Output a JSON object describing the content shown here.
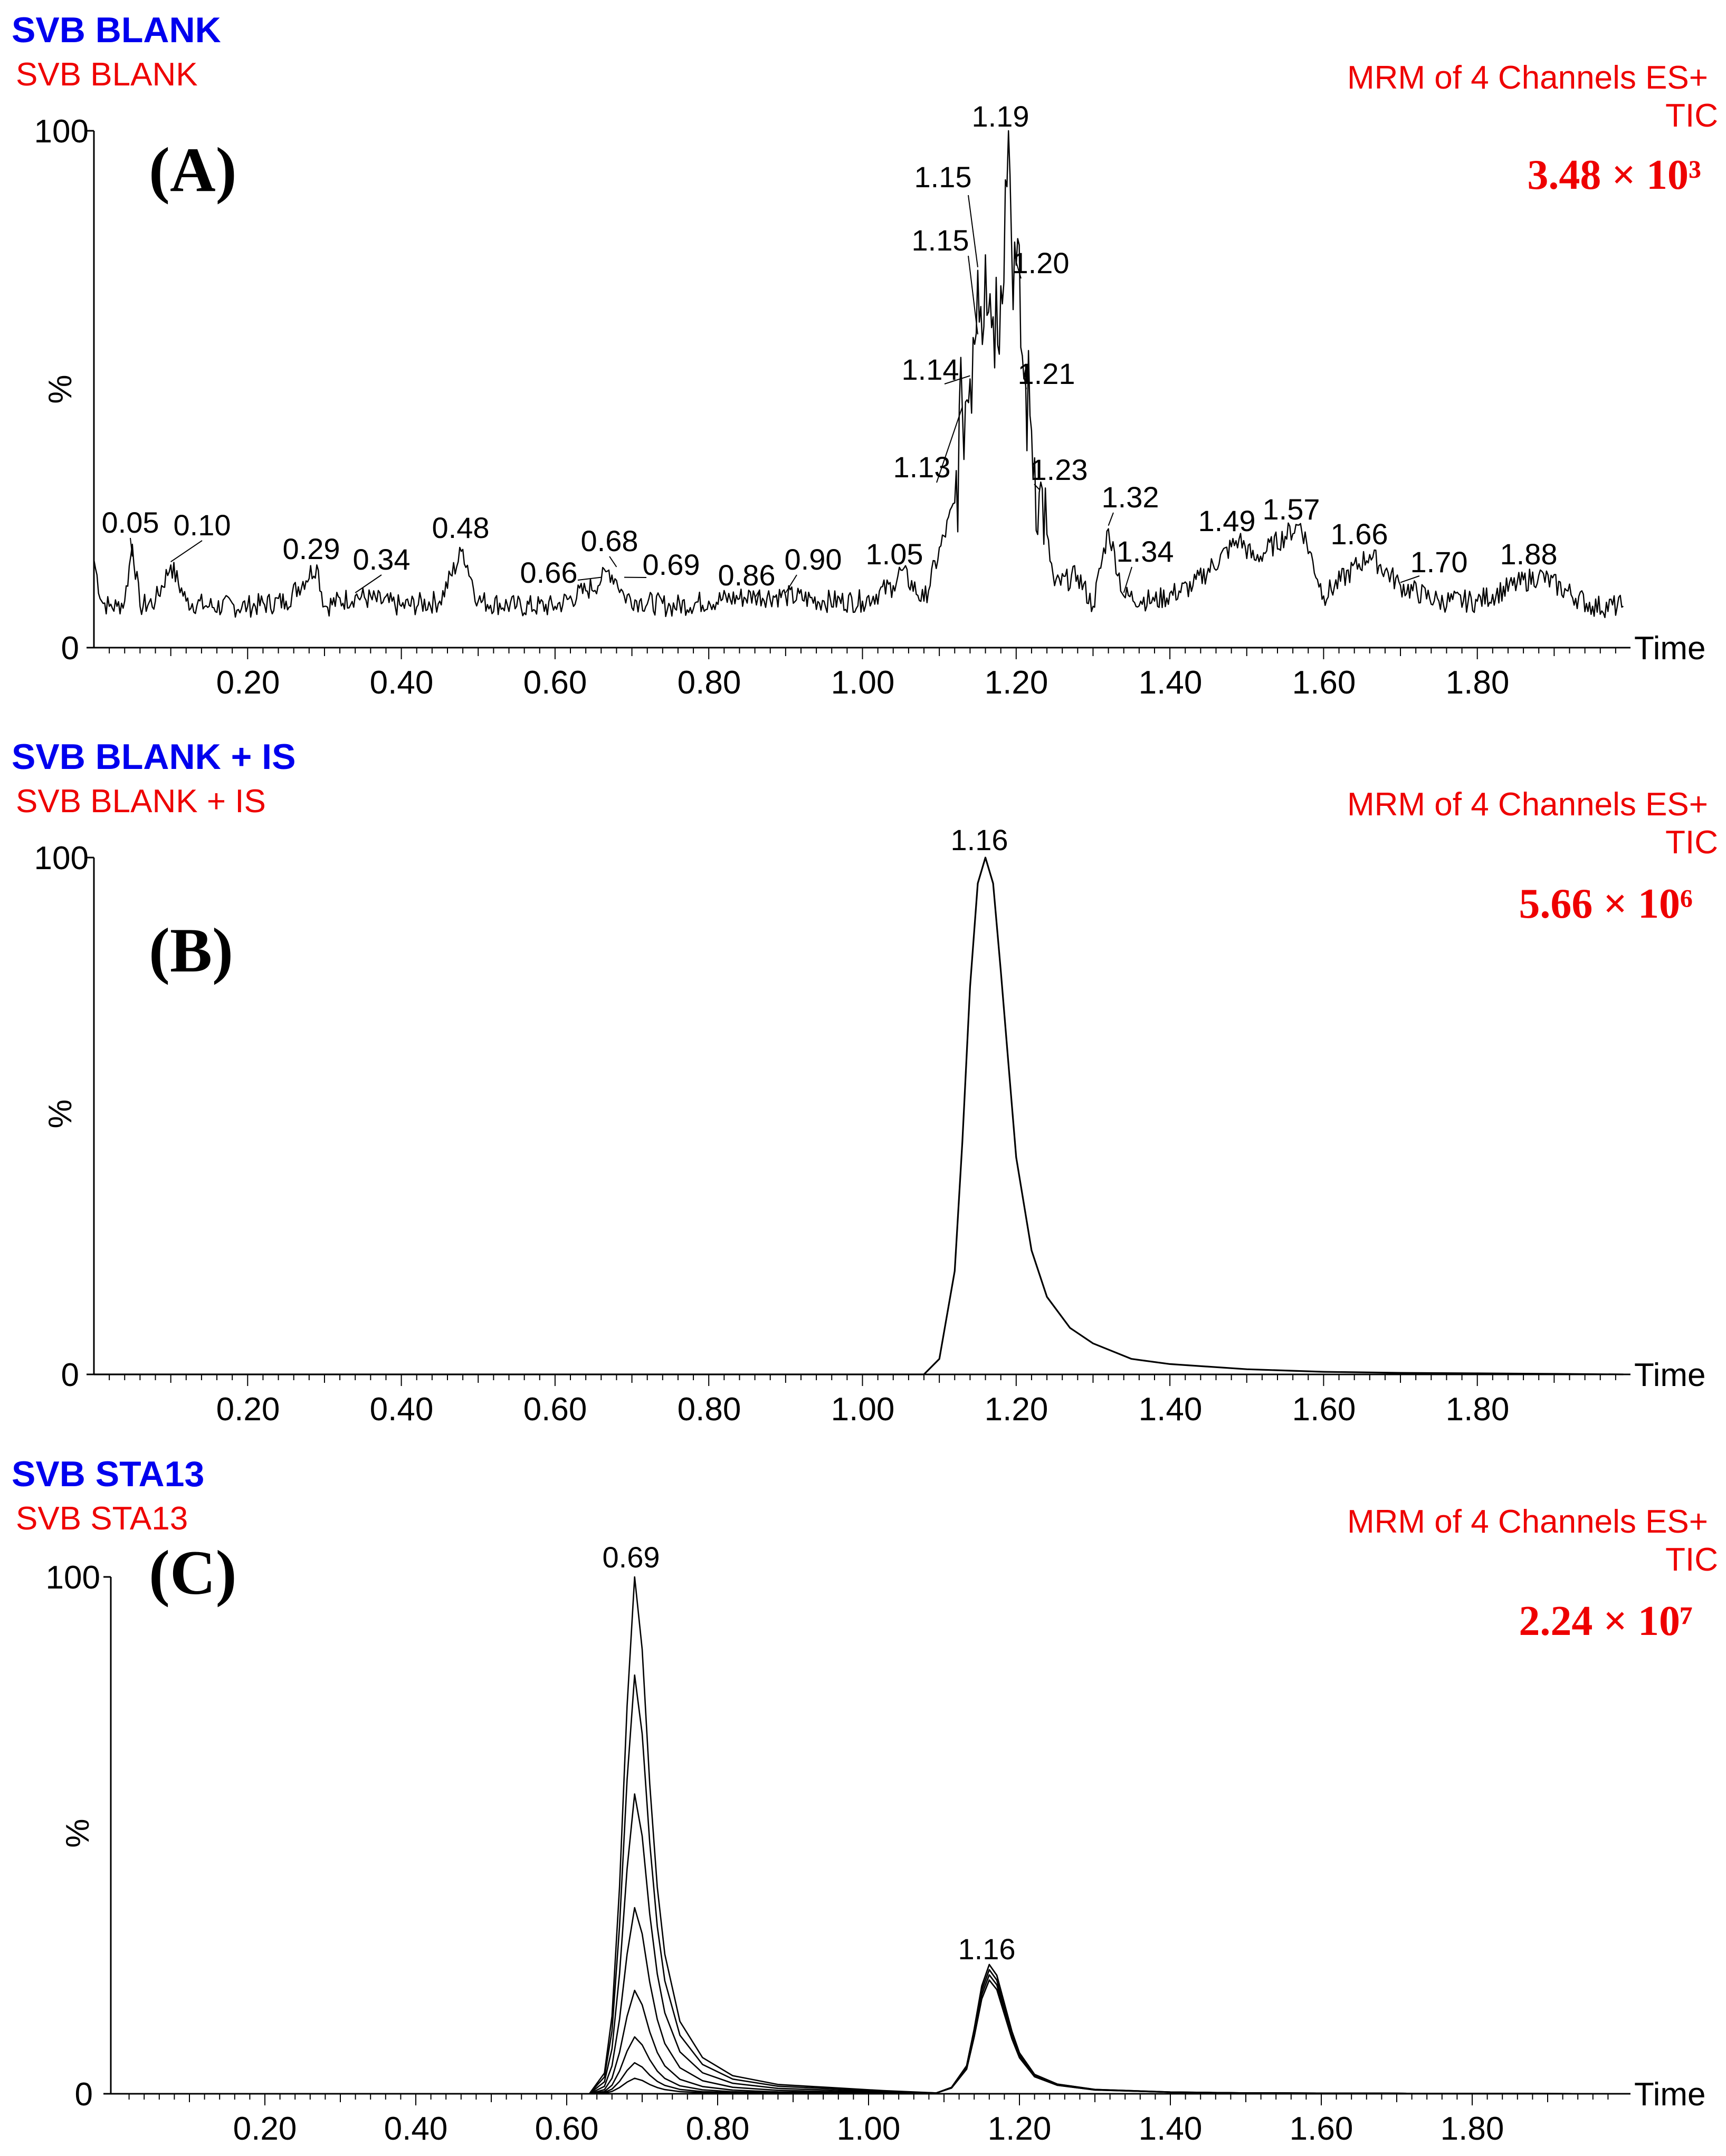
{
  "chart_data": [
    {
      "type": "line",
      "title": "SVB BLANK",
      "subtitle": "SVB BLANK",
      "channel_label": "MRM of 4 Channels ES+",
      "mode_label": "TIC",
      "intensity_label": "3.48 × 10³",
      "panel_label": "(A)",
      "xlabel": "Time",
      "ylabel": "%",
      "xlim": [
        0.0,
        1.99
      ],
      "ylim": [
        0,
        100
      ],
      "x_ticks": [
        "0.20",
        "0.40",
        "0.60",
        "0.80",
        "1.00",
        "1.20",
        "1.40",
        "1.60",
        "1.80"
      ],
      "y_ticks": [
        "0",
        "100"
      ],
      "series": [
        {
          "x": [
            0.0,
            0.01,
            0.02,
            0.03,
            0.04,
            0.05,
            0.06,
            0.08,
            0.1,
            0.12,
            0.15,
            0.2,
            0.25,
            0.29,
            0.3,
            0.34,
            0.4,
            0.45,
            0.48,
            0.5,
            0.55,
            0.6,
            0.64,
            0.66,
            0.67,
            0.68,
            0.69,
            0.71,
            0.75,
            0.8,
            0.86,
            0.9,
            0.95,
            1.0,
            1.04,
            1.05,
            1.08,
            1.12,
            1.13,
            1.14,
            1.145,
            1.15,
            1.155,
            1.16,
            1.17,
            1.18,
            1.19,
            1.195,
            1.2,
            1.21,
            1.22,
            1.23,
            1.25,
            1.28,
            1.3,
            1.32,
            1.34,
            1.38,
            1.43,
            1.49,
            1.51,
            1.57,
            1.6,
            1.66,
            1.7,
            1.75,
            1.8,
            1.88,
            1.95,
            1.99
          ],
          "values": [
            17,
            9,
            8,
            8,
            9,
            20,
            8,
            9,
            16,
            9,
            8,
            8,
            9,
            16,
            8,
            10,
            8,
            9,
            19,
            9,
            8,
            8,
            11,
            13,
            15,
            13,
            10,
            9,
            8,
            9,
            10,
            10,
            9,
            9,
            12,
            15,
            9,
            28,
            46,
            52,
            60,
            73,
            66,
            76,
            64,
            70,
            100,
            78,
            74,
            52,
            42,
            30,
            12,
            14,
            8,
            23,
            10,
            9,
            12,
            21,
            17,
            24,
            10,
            18,
            12,
            9,
            9,
            14,
            8,
            8
          ]
        }
      ],
      "annotations": [
        "0.05",
        "0.10",
        "0.29",
        "0.34",
        "0.48",
        "0.66",
        "0.68",
        "0.69",
        "0.86",
        "0.90",
        "1.05",
        "1.13",
        "1.14",
        "1.15",
        "1.15",
        "1.19",
        "1.20",
        "1.21",
        "1.23",
        "1.32",
        "1.34",
        "1.49",
        "1.57",
        "1.66",
        "1.70",
        "1.88"
      ]
    },
    {
      "type": "line",
      "title": "SVB BLANK + IS",
      "subtitle": "SVB BLANK + IS",
      "channel_label": "MRM of 4 Channels ES+",
      "mode_label": "TIC",
      "intensity_label": "5.66 × 10⁶",
      "panel_label": "(B)",
      "xlabel": "Time",
      "ylabel": "%",
      "xlim": [
        0.0,
        1.99
      ],
      "ylim": [
        0,
        100
      ],
      "x_ticks": [
        "0.20",
        "0.40",
        "0.60",
        "0.80",
        "1.00",
        "1.20",
        "1.40",
        "1.60",
        "1.80"
      ],
      "y_ticks": [
        "0",
        "100"
      ],
      "series": [
        {
          "x": [
            0.0,
            1.08,
            1.1,
            1.12,
            1.13,
            1.14,
            1.15,
            1.16,
            1.17,
            1.18,
            1.19,
            1.2,
            1.22,
            1.24,
            1.27,
            1.3,
            1.35,
            1.4,
            1.5,
            1.6,
            1.7,
            1.8,
            1.9,
            1.99
          ],
          "values": [
            0,
            0,
            3,
            20,
            45,
            75,
            95,
            100,
            95,
            78,
            60,
            42,
            24,
            15,
            9,
            6,
            3,
            2,
            1,
            0.5,
            0.3,
            0.2,
            0.1,
            0
          ]
        }
      ],
      "annotations": [
        "1.16"
      ]
    },
    {
      "type": "line",
      "title": "SVB STA13",
      "subtitle": "SVB STA13",
      "channel_label": "MRM of 4 Channels ES+",
      "mode_label": "TIC",
      "intensity_label": "2.24 × 10⁷",
      "panel_label": "(C)",
      "xlabel": "Time",
      "ylabel": "%",
      "xlim": [
        0.0,
        1.99
      ],
      "ylim": [
        0,
        100
      ],
      "x_ticks": [
        "0.20",
        "0.40",
        "0.60",
        "0.80",
        "1.00",
        "1.20",
        "1.40",
        "1.60",
        "1.80"
      ],
      "y_ticks": [
        "0",
        "100"
      ],
      "peak_profile": {
        "x": [
          0.0,
          0.63,
          0.65,
          0.66,
          0.67,
          0.68,
          0.69,
          0.7,
          0.71,
          0.72,
          0.73,
          0.75,
          0.78,
          0.82,
          0.88,
          0.95,
          1.02,
          1.09,
          1.11,
          1.13,
          1.14,
          1.15,
          1.16,
          1.17,
          1.18,
          1.19,
          1.2,
          1.22,
          1.25,
          1.3,
          1.4,
          1.5,
          1.7,
          1.99
        ],
        "values": [
          0,
          0,
          0.04,
          0.15,
          0.4,
          0.75,
          1.0,
          0.86,
          0.6,
          0.4,
          0.27,
          0.14,
          0.07,
          0.035,
          0.018,
          0.012,
          0.006,
          0.004,
          0.03,
          0.13,
          0.3,
          0.5,
          0.6,
          0.55,
          0.42,
          0.29,
          0.19,
          0.09,
          0.045,
          0.02,
          0.008,
          0.004,
          0.002,
          0
        ]
      },
      "series": [
        {
          "second_peak_scale": 25,
          "first_peak_scale": 100
        },
        {
          "second_peak_scale": 25,
          "first_peak_scale": 81
        },
        {
          "second_peak_scale": 24,
          "first_peak_scale": 58
        },
        {
          "second_peak_scale": 24,
          "first_peak_scale": 36
        },
        {
          "second_peak_scale": 23,
          "first_peak_scale": 20
        },
        {
          "second_peak_scale": 23,
          "first_peak_scale": 11
        },
        {
          "second_peak_scale": 22,
          "first_peak_scale": 6
        },
        {
          "second_peak_scale": 22,
          "first_peak_scale": 3
        }
      ],
      "annotations": [
        "0.69",
        "1.16"
      ]
    }
  ]
}
